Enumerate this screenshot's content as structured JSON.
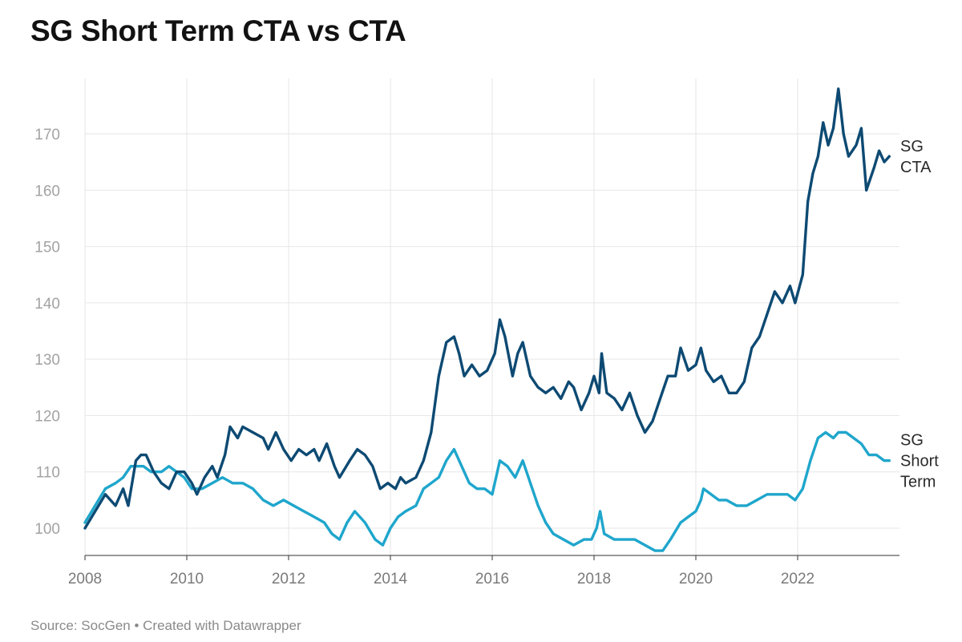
{
  "title": "SG Short Term CTA vs CTA",
  "source": "Source: SocGen • Created with Datawrapper",
  "chart_data": {
    "type": "line",
    "title": "SG Short Term CTA vs CTA",
    "xlabel": "",
    "ylabel": "",
    "xlim": [
      2008.0,
      2023.8
    ],
    "ylim": [
      95,
      180
    ],
    "grid": true,
    "y_ticks": [
      100,
      110,
      120,
      130,
      140,
      150,
      160,
      170
    ],
    "x_ticks": [
      2008,
      2010,
      2012,
      2014,
      2016,
      2018,
      2020,
      2022
    ],
    "series": [
      {
        "name": "SG CTA",
        "label_lines": [
          "SG",
          "CTA"
        ],
        "color": "#0d4a73",
        "points": [
          [
            2008.0,
            100
          ],
          [
            2008.2,
            103
          ],
          [
            2008.4,
            106
          ],
          [
            2008.6,
            104
          ],
          [
            2008.75,
            107
          ],
          [
            2008.85,
            104
          ],
          [
            2009.0,
            112
          ],
          [
            2009.1,
            113
          ],
          [
            2009.2,
            113
          ],
          [
            2009.35,
            110
          ],
          [
            2009.5,
            108
          ],
          [
            2009.65,
            107
          ],
          [
            2009.8,
            110
          ],
          [
            2009.95,
            110
          ],
          [
            2010.1,
            108
          ],
          [
            2010.2,
            106
          ],
          [
            2010.35,
            109
          ],
          [
            2010.5,
            111
          ],
          [
            2010.6,
            109
          ],
          [
            2010.75,
            113
          ],
          [
            2010.85,
            118
          ],
          [
            2011.0,
            116
          ],
          [
            2011.1,
            118
          ],
          [
            2011.3,
            117
          ],
          [
            2011.5,
            116
          ],
          [
            2011.6,
            114
          ],
          [
            2011.75,
            117
          ],
          [
            2011.9,
            114
          ],
          [
            2012.05,
            112
          ],
          [
            2012.2,
            114
          ],
          [
            2012.35,
            113
          ],
          [
            2012.5,
            114
          ],
          [
            2012.6,
            112
          ],
          [
            2012.75,
            115
          ],
          [
            2012.9,
            111
          ],
          [
            2013.0,
            109
          ],
          [
            2013.2,
            112
          ],
          [
            2013.35,
            114
          ],
          [
            2013.5,
            113
          ],
          [
            2013.65,
            111
          ],
          [
            2013.8,
            107
          ],
          [
            2013.95,
            108
          ],
          [
            2014.1,
            107
          ],
          [
            2014.2,
            109
          ],
          [
            2014.3,
            108
          ],
          [
            2014.5,
            109
          ],
          [
            2014.65,
            112
          ],
          [
            2014.8,
            117
          ],
          [
            2014.95,
            127
          ],
          [
            2015.1,
            133
          ],
          [
            2015.25,
            134
          ],
          [
            2015.35,
            131
          ],
          [
            2015.45,
            127
          ],
          [
            2015.6,
            129
          ],
          [
            2015.75,
            127
          ],
          [
            2015.9,
            128
          ],
          [
            2016.05,
            131
          ],
          [
            2016.15,
            137
          ],
          [
            2016.25,
            134
          ],
          [
            2016.4,
            127
          ],
          [
            2016.5,
            131
          ],
          [
            2016.6,
            133
          ],
          [
            2016.75,
            127
          ],
          [
            2016.9,
            125
          ],
          [
            2017.05,
            124
          ],
          [
            2017.2,
            125
          ],
          [
            2017.35,
            123
          ],
          [
            2017.5,
            126
          ],
          [
            2017.6,
            125
          ],
          [
            2017.75,
            121
          ],
          [
            2017.9,
            124
          ],
          [
            2018.0,
            127
          ],
          [
            2018.1,
            124
          ],
          [
            2018.15,
            131
          ],
          [
            2018.25,
            124
          ],
          [
            2018.4,
            123
          ],
          [
            2018.55,
            121
          ],
          [
            2018.7,
            124
          ],
          [
            2018.85,
            120
          ],
          [
            2019.0,
            117
          ],
          [
            2019.15,
            119
          ],
          [
            2019.3,
            123
          ],
          [
            2019.45,
            127
          ],
          [
            2019.6,
            127
          ],
          [
            2019.7,
            132
          ],
          [
            2019.85,
            128
          ],
          [
            2020.0,
            129
          ],
          [
            2020.1,
            132
          ],
          [
            2020.2,
            128
          ],
          [
            2020.35,
            126
          ],
          [
            2020.5,
            127
          ],
          [
            2020.65,
            124
          ],
          [
            2020.8,
            124
          ],
          [
            2020.95,
            126
          ],
          [
            2021.1,
            132
          ],
          [
            2021.25,
            134
          ],
          [
            2021.4,
            138
          ],
          [
            2021.55,
            142
          ],
          [
            2021.7,
            140
          ],
          [
            2021.85,
            143
          ],
          [
            2021.95,
            140
          ],
          [
            2022.1,
            145
          ],
          [
            2022.2,
            158
          ],
          [
            2022.3,
            163
          ],
          [
            2022.4,
            166
          ],
          [
            2022.5,
            172
          ],
          [
            2022.6,
            168
          ],
          [
            2022.7,
            171
          ],
          [
            2022.8,
            178
          ],
          [
            2022.9,
            170
          ],
          [
            2023.0,
            166
          ],
          [
            2023.15,
            168
          ],
          [
            2023.25,
            171
          ],
          [
            2023.35,
            160
          ],
          [
            2023.5,
            164
          ],
          [
            2023.6,
            167
          ],
          [
            2023.7,
            165
          ],
          [
            2023.8,
            166
          ]
        ]
      },
      {
        "name": "SG Short Term",
        "label_lines": [
          "SG",
          "Short",
          "Term"
        ],
        "color": "#1fa6cc",
        "points": [
          [
            2008.0,
            101
          ],
          [
            2008.2,
            104
          ],
          [
            2008.4,
            107
          ],
          [
            2008.6,
            108
          ],
          [
            2008.75,
            109
          ],
          [
            2008.9,
            111
          ],
          [
            2009.0,
            111
          ],
          [
            2009.15,
            111
          ],
          [
            2009.3,
            110
          ],
          [
            2009.5,
            110
          ],
          [
            2009.65,
            111
          ],
          [
            2009.8,
            110
          ],
          [
            2009.95,
            109
          ],
          [
            2010.1,
            107
          ],
          [
            2010.3,
            107
          ],
          [
            2010.5,
            108
          ],
          [
            2010.7,
            109
          ],
          [
            2010.9,
            108
          ],
          [
            2011.1,
            108
          ],
          [
            2011.3,
            107
          ],
          [
            2011.5,
            105
          ],
          [
            2011.7,
            104
          ],
          [
            2011.9,
            105
          ],
          [
            2012.1,
            104
          ],
          [
            2012.3,
            103
          ],
          [
            2012.5,
            102
          ],
          [
            2012.7,
            101
          ],
          [
            2012.85,
            99
          ],
          [
            2013.0,
            98
          ],
          [
            2013.15,
            101
          ],
          [
            2013.3,
            103
          ],
          [
            2013.5,
            101
          ],
          [
            2013.7,
            98
          ],
          [
            2013.85,
            97
          ],
          [
            2014.0,
            100
          ],
          [
            2014.15,
            102
          ],
          [
            2014.3,
            103
          ],
          [
            2014.5,
            104
          ],
          [
            2014.65,
            107
          ],
          [
            2014.8,
            108
          ],
          [
            2014.95,
            109
          ],
          [
            2015.1,
            112
          ],
          [
            2015.25,
            114
          ],
          [
            2015.4,
            111
          ],
          [
            2015.55,
            108
          ],
          [
            2015.7,
            107
          ],
          [
            2015.85,
            107
          ],
          [
            2016.0,
            106
          ],
          [
            2016.15,
            112
          ],
          [
            2016.3,
            111
          ],
          [
            2016.45,
            109
          ],
          [
            2016.6,
            112
          ],
          [
            2016.75,
            108
          ],
          [
            2016.9,
            104
          ],
          [
            2017.05,
            101
          ],
          [
            2017.2,
            99
          ],
          [
            2017.4,
            98
          ],
          [
            2017.6,
            97
          ],
          [
            2017.8,
            98
          ],
          [
            2017.95,
            98
          ],
          [
            2018.05,
            100
          ],
          [
            2018.12,
            103
          ],
          [
            2018.2,
            99
          ],
          [
            2018.4,
            98
          ],
          [
            2018.6,
            98
          ],
          [
            2018.8,
            98
          ],
          [
            2019.0,
            97
          ],
          [
            2019.2,
            96
          ],
          [
            2019.35,
            96
          ],
          [
            2019.5,
            98
          ],
          [
            2019.7,
            101
          ],
          [
            2019.85,
            102
          ],
          [
            2020.0,
            103
          ],
          [
            2020.1,
            105
          ],
          [
            2020.15,
            107
          ],
          [
            2020.3,
            106
          ],
          [
            2020.45,
            105
          ],
          [
            2020.6,
            105
          ],
          [
            2020.8,
            104
          ],
          [
            2021.0,
            104
          ],
          [
            2021.2,
            105
          ],
          [
            2021.4,
            106
          ],
          [
            2021.6,
            106
          ],
          [
            2021.8,
            106
          ],
          [
            2021.95,
            105
          ],
          [
            2022.1,
            107
          ],
          [
            2022.25,
            112
          ],
          [
            2022.4,
            116
          ],
          [
            2022.55,
            117
          ],
          [
            2022.7,
            116
          ],
          [
            2022.8,
            117
          ],
          [
            2022.95,
            117
          ],
          [
            2023.1,
            116
          ],
          [
            2023.25,
            115
          ],
          [
            2023.4,
            113
          ],
          [
            2023.55,
            113
          ],
          [
            2023.7,
            112
          ],
          [
            2023.8,
            112
          ]
        ]
      }
    ]
  }
}
